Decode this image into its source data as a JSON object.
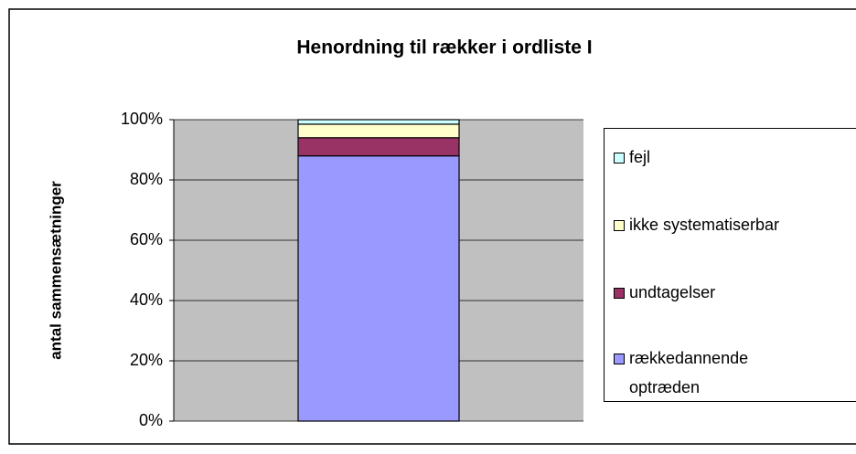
{
  "chart_data": {
    "type": "stacked_bar",
    "title": "Henordning til rækker i ordliste I",
    "ylabel": "antal sammensætninger",
    "categories": [
      null
    ],
    "series": [
      {
        "name": "rækkedannende optræden",
        "color": "#9999ff",
        "values": [
          88
        ]
      },
      {
        "name": "undtagelser",
        "color": "#993366",
        "values": [
          6
        ]
      },
      {
        "name": "ikke systematiserbar",
        "color": "#ffffcc",
        "values": [
          4.5
        ]
      },
      {
        "name": "fejl",
        "color": "#ccffff",
        "values": [
          1.5
        ]
      }
    ],
    "ylim": [
      0,
      100
    ],
    "yticks": [
      {
        "value": 0,
        "label": "0%"
      },
      {
        "value": 20,
        "label": "20%"
      },
      {
        "value": 40,
        "label": "40%"
      },
      {
        "value": 60,
        "label": "60%"
      },
      {
        "value": 80,
        "label": "80%"
      },
      {
        "value": 100,
        "label": "100%"
      }
    ],
    "grid": true,
    "legend": "right"
  }
}
